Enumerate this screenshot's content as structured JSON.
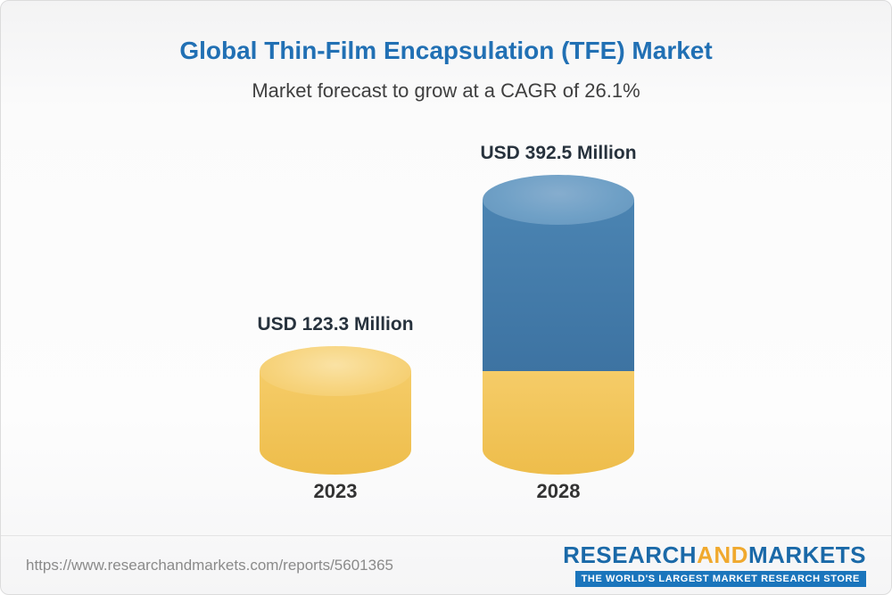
{
  "header": {
    "title": "Global Thin-Film Encapsulation (TFE) Market",
    "subtitle": "Market forecast to grow at a CAGR of 26.1%"
  },
  "chart_data": {
    "type": "bar",
    "categories": [
      "2023",
      "2028"
    ],
    "values": [
      123.3,
      392.5
    ],
    "value_labels": [
      "USD 123.3 Million",
      "USD 392.5 Million"
    ],
    "unit": "USD Million",
    "cagr": "26.1%",
    "title": "Global Thin-Film Encapsulation (TFE) Market",
    "subtitle": "Market forecast to grow at a CAGR of 26.1%",
    "legend_position": "none",
    "grid": false,
    "colors": {
      "base": "#EFBE4C",
      "growth": "#3D73A2"
    }
  },
  "footer": {
    "url": "https://www.researchandmarkets.com/reports/5601365",
    "logo": {
      "part1": "RESEARCH",
      "part2": "AND",
      "part3": "MARKETS",
      "tagline": "THE WORLD'S LARGEST MARKET RESEARCH STORE",
      "brand_blue": "#1A69A8",
      "brand_yellow": "#F0A92E"
    }
  }
}
